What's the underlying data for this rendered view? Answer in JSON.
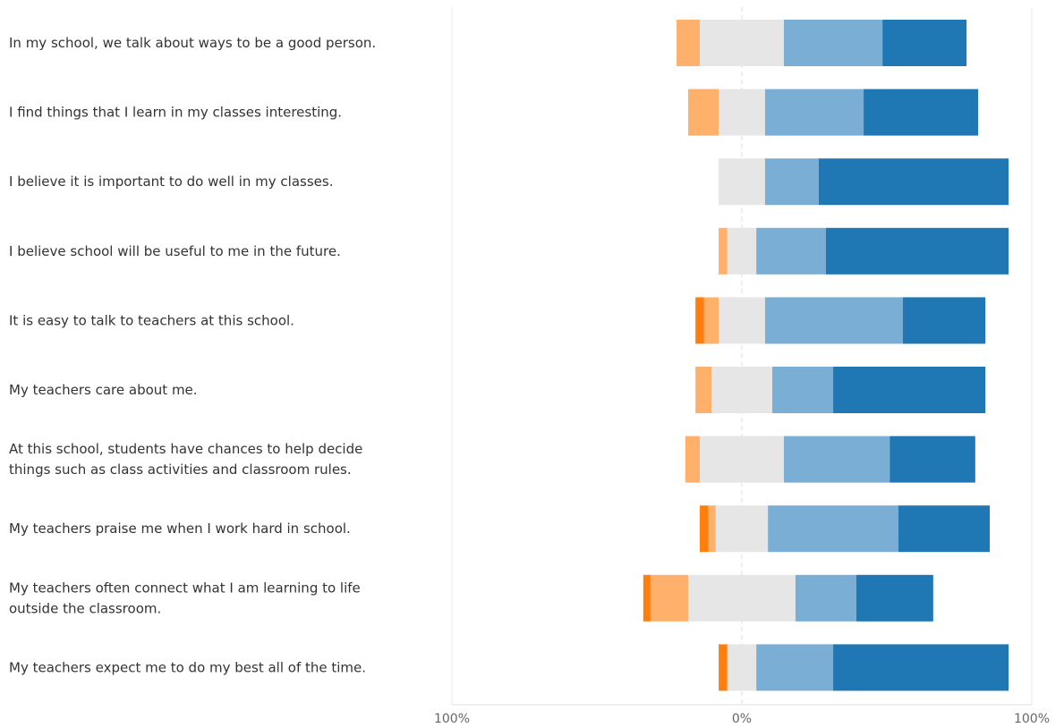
{
  "chart_data": {
    "type": "bar",
    "orientation": "horizontal",
    "stacked": "diverging",
    "categories": [
      [
        "In my school, we talk about ways to be a good person."
      ],
      [
        "I find things that I learn in my classes interesting."
      ],
      [
        "I believe it is important to do well in my classes."
      ],
      [
        "I believe school will be useful to me in the future."
      ],
      [
        "It is easy to talk to teachers at this school."
      ],
      [
        "My teachers care about me."
      ],
      [
        "At this school, students have chances to help decide",
        "things such as class activities and classroom rules."
      ],
      [
        "My teachers praise me when I work hard in school."
      ],
      [
        "My teachers often connect what I am learning to life",
        "outside the classroom."
      ],
      [
        "My teachers expect me to do my best all of the time."
      ]
    ],
    "series": [
      {
        "color": "#ff7f0e",
        "values": [
          0,
          0,
          0,
          0,
          3,
          0,
          0,
          3,
          2.5,
          3
        ]
      },
      {
        "color": "#ffb06b",
        "values": [
          8,
          10.5,
          0,
          3,
          5,
          5.5,
          5,
          2.5,
          13,
          0
        ]
      },
      {
        "color": "#e6e6e6",
        "values": [
          29,
          16,
          16,
          10,
          16,
          21,
          29,
          18,
          37,
          10
        ]
      },
      {
        "color": "#7aaed4",
        "values": [
          34,
          34,
          18.5,
          24,
          47.5,
          21,
          36.5,
          45,
          21,
          26.5
        ]
      },
      {
        "color": "#1f77b4",
        "values": [
          29,
          39.5,
          65.5,
          63,
          28.5,
          52.5,
          29.5,
          31.5,
          26.5,
          60.5
        ]
      }
    ],
    "neutral_index": 2,
    "neutral_split": 0.5,
    "xlim": [
      -100,
      100
    ],
    "xticks": [
      "100%",
      "0%",
      "100%"
    ],
    "grid": true
  }
}
